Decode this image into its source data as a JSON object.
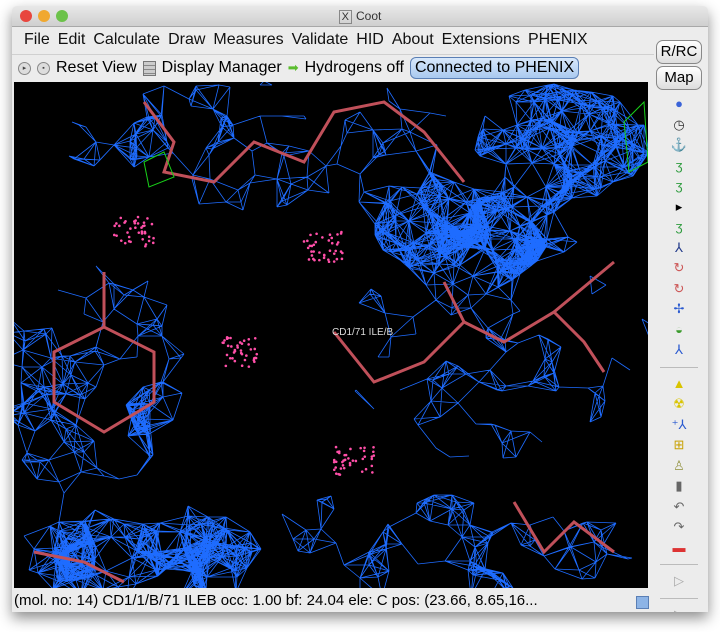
{
  "window": {
    "title": "Coot"
  },
  "menu": [
    "File",
    "Edit",
    "Calculate",
    "Draw",
    "Measures",
    "Validate",
    "HID",
    "About",
    "Extensions",
    "PHENIX"
  ],
  "toolbar": {
    "reset_view": "Reset View",
    "display_manager": "Display Manager",
    "hydrogens": "Hydrogens off",
    "connected": "Connected to PHENIX"
  },
  "side": {
    "rrc": "R/RC",
    "map": "Map",
    "icons": [
      "rotate-translate-zone-icon",
      "auto-fit-rotamer-icon",
      "rigid-body-fit-icon",
      "real-space-refine-icon",
      "regularize-icon",
      "expand-arrow-icon",
      "rotamers-icon",
      "edit-chi-angles-icon",
      "torsion-general-icon",
      "flip-peptide-icon",
      "side-chain-180-icon",
      "sidechain-icon",
      "edit-backbone-icon",
      "add-terminal-residue-icon",
      "add-atom-icon",
      "mutate-icon",
      "mutate-autofit-icon",
      "place-atom-icon",
      "clear-pending-icon",
      "delete-icon",
      "undo-icon",
      "redo-icon",
      "color-icon",
      "play-icon"
    ]
  },
  "viewport": {
    "atom_label": "CD1/71 ILE/B",
    "colors": {
      "background": "#000000",
      "map_mesh": "#1e6cff",
      "bonds": "#c0505a",
      "difference_map": "#19d219",
      "contacts": "#ff4fa8"
    }
  },
  "status": {
    "text": "(mol. no: 14)  CD1/1/B/71 ILEB occ:  1.00 bf: 24.04 ele:  C pos: (23.66, 8.65,16..."
  }
}
